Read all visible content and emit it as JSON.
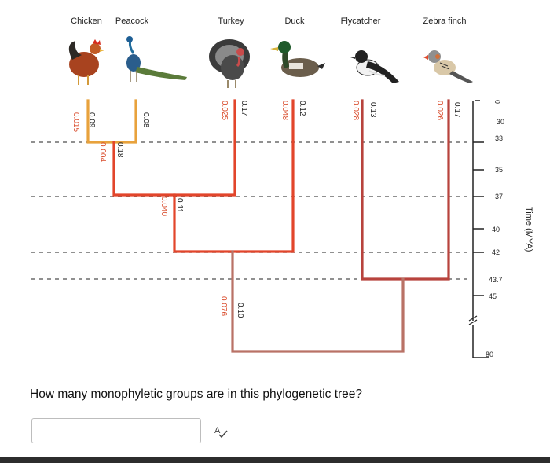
{
  "taxa": [
    "Chicken",
    "Peacock",
    "Turkey",
    "Duck",
    "Flycatcher",
    "Zebra finch"
  ],
  "bird_icons": [
    "chicken-icon",
    "peacock-icon",
    "turkey-icon",
    "duck-icon",
    "flycatcher-icon",
    "zebra-finch-icon"
  ],
  "branch_labels": {
    "chicken": [
      "0.015",
      "0.09"
    ],
    "peacock": [
      "0.08"
    ],
    "chicken_peacock": [
      "0.004",
      "0.18"
    ],
    "galliform_stem": [
      "0.040",
      "0.11"
    ],
    "turkey": [
      "0.025",
      "0.17"
    ],
    "duck": [
      "0.048",
      "0.12"
    ],
    "landfowl_stem": [
      "0.076",
      "0.10"
    ],
    "flycatcher": [
      "0.028",
      "0.13"
    ],
    "zebra_finch": [
      "0.026",
      "0.17"
    ]
  },
  "time_ticks": [
    "0",
    "30",
    "33",
    "35",
    "37",
    "40",
    "42",
    "43.7",
    "45",
    "80"
  ],
  "axis_title": "Time (MYA)",
  "colors": {
    "orange": "#e8a23c",
    "red": "#e2452b",
    "darkred": "#b8433d",
    "brown": "#b97266",
    "dashed": "#6b6b6b"
  },
  "question": "How many monophyletic groups are in this phylogenetic tree?",
  "answer": {
    "value": "",
    "placeholder": ""
  },
  "spellcheck_icon": "spellcheck-icon"
}
